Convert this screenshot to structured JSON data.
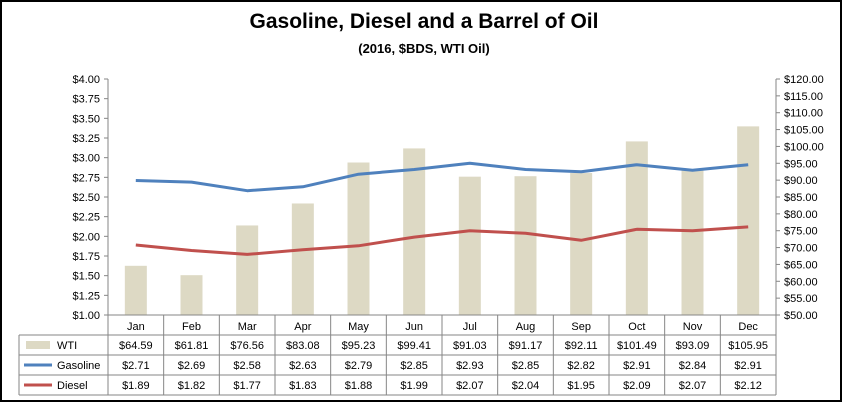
{
  "chart_data": {
    "type": "bar+line",
    "title": "Gasoline, Diesel and a Barrel of Oil",
    "subtitle": "(2016, $BDS, WTI Oil)",
    "categories": [
      "Jan",
      "Feb",
      "Mar",
      "Apr",
      "May",
      "Jun",
      "Jul",
      "Aug",
      "Sep",
      "Oct",
      "Nov",
      "Dec"
    ],
    "left_axis": {
      "min": 1.0,
      "max": 4.0,
      "step": 0.25,
      "format": "$0.00"
    },
    "right_axis": {
      "min": 50.0,
      "max": 120.0,
      "step": 5.0,
      "format": "$0.00"
    },
    "series": [
      {
        "name": "WTI",
        "kind": "bar",
        "axis": "right",
        "color": "#ddd9c4",
        "values": [
          64.59,
          61.81,
          76.56,
          83.08,
          95.23,
          99.41,
          91.03,
          91.17,
          92.11,
          101.49,
          93.09,
          105.95
        ],
        "labels": [
          "$64.59",
          "$61.81",
          "$76.56",
          "$83.08",
          "$95.23",
          "$99.41",
          "$91.03",
          "$91.17",
          "$92.11",
          "$101.49",
          "$93.09",
          "$105.95"
        ]
      },
      {
        "name": "Gasoline",
        "kind": "line",
        "axis": "left",
        "color": "#4f81bd",
        "values": [
          2.71,
          2.69,
          2.58,
          2.63,
          2.79,
          2.85,
          2.93,
          2.85,
          2.82,
          2.91,
          2.84,
          2.91
        ],
        "labels": [
          "$2.71",
          "$2.69",
          "$2.58",
          "$2.63",
          "$2.79",
          "$2.85",
          "$2.93",
          "$2.85",
          "$2.82",
          "$2.91",
          "$2.84",
          "$2.91"
        ]
      },
      {
        "name": "Diesel",
        "kind": "line",
        "axis": "left",
        "color": "#c0504d",
        "values": [
          1.89,
          1.82,
          1.77,
          1.83,
          1.88,
          1.99,
          2.07,
          2.04,
          1.95,
          2.09,
          2.07,
          2.12
        ],
        "labels": [
          "$1.89",
          "$1.82",
          "$1.77",
          "$1.83",
          "$1.88",
          "$1.99",
          "$2.07",
          "$2.04",
          "$1.95",
          "$2.09",
          "$2.07",
          "$2.12"
        ]
      }
    ],
    "legend": "data-table",
    "grid": false
  }
}
